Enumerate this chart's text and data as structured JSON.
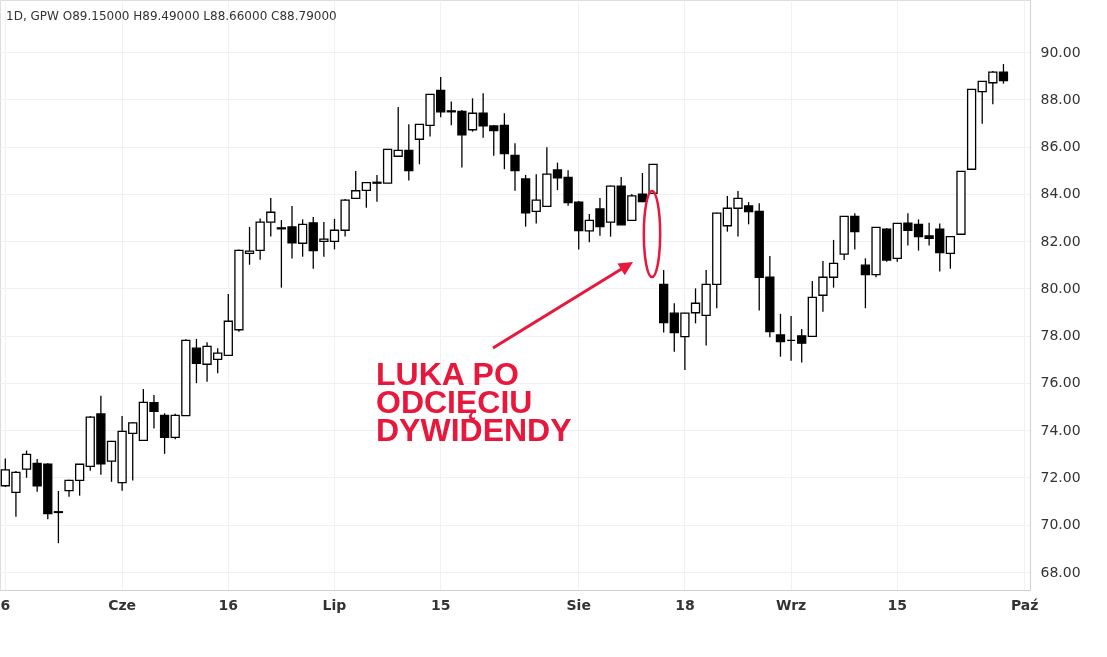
{
  "chart_data": {
    "type": "candlestick",
    "title": "1D, GPW  O89.15000  H89.49000  L88.66000  C88.79000",
    "annotations": [
      "LUKA PO\nODCIĘCIU\nDYWIDENDY"
    ],
    "color": "#000000",
    "categories": [
      "6",
      null,
      null,
      null,
      null,
      null,
      null,
      null,
      null,
      null,
      null,
      "Cze",
      null,
      null,
      null,
      null,
      null,
      null,
      null,
      null,
      null,
      "16",
      null,
      null,
      null,
      null,
      null,
      null,
      null,
      null,
      null,
      "Lip",
      null,
      null,
      null,
      null,
      null,
      null,
      null,
      null,
      null,
      "15",
      null,
      null,
      null,
      null,
      null,
      null,
      null,
      null,
      null,
      null,
      null,
      null,
      "Sie",
      null,
      null,
      null,
      null,
      null,
      null,
      null,
      null,
      null,
      "18",
      null,
      null,
      null,
      null,
      null,
      null,
      null,
      null,
      null,
      "Wrz",
      null,
      null,
      null,
      null,
      null,
      null,
      null,
      null,
      null,
      "15",
      null,
      null,
      null,
      null,
      null,
      null,
      null,
      null,
      null,
      null,
      null,
      "Paź"
    ],
    "ohlc": [
      [
        71.65,
        72.8,
        71.6,
        72.32
      ],
      [
        71.37,
        72.27,
        70.34,
        72.22
      ],
      [
        72.35,
        73.14,
        71.99,
        72.98
      ],
      [
        72.6,
        72.78,
        71.4,
        71.65
      ],
      [
        72.56,
        72.6,
        70.23,
        70.47
      ],
      [
        70.55,
        71.43,
        69.22,
        70.52
      ],
      [
        71.44,
        71.9,
        71.19,
        71.88
      ],
      [
        71.88,
        72.56,
        71.23,
        72.56
      ],
      [
        72.47,
        74.6,
        72.29,
        74.55
      ],
      [
        74.69,
        75.46,
        72.12,
        72.58
      ],
      [
        72.69,
        73.55,
        71.82,
        73.53
      ],
      [
        71.78,
        74.6,
        71.44,
        73.95
      ],
      [
        73.87,
        74.35,
        71.87,
        74.31
      ],
      [
        73.57,
        75.74,
        73.57,
        75.18
      ],
      [
        75.17,
        75.49,
        74.07,
        74.8
      ],
      [
        74.63,
        74.72,
        73.0,
        73.7
      ],
      [
        73.7,
        74.7,
        73.62,
        74.63
      ],
      [
        74.62,
        77.85,
        74.6,
        77.8
      ],
      [
        77.47,
        77.86,
        75.99,
        76.83
      ],
      [
        76.79,
        77.72,
        76.05,
        77.55
      ],
      [
        77.0,
        77.47,
        76.41,
        77.26
      ],
      [
        77.17,
        79.76,
        77.17,
        78.61
      ],
      [
        78.25,
        81.65,
        78.17,
        81.61
      ],
      [
        81.48,
        82.6,
        81.0,
        81.58
      ],
      [
        81.61,
        82.96,
        81.21,
        82.8
      ],
      [
        82.8,
        83.82,
        82.19,
        83.22
      ],
      [
        82.56,
        82.89,
        80.03,
        82.52
      ],
      [
        82.6,
        83.49,
        81.26,
        81.93
      ],
      [
        81.91,
        82.92,
        81.34,
        82.71
      ],
      [
        82.77,
        83.02,
        80.83,
        81.6
      ],
      [
        81.99,
        82.81,
        81.34,
        82.08
      ],
      [
        81.99,
        82.94,
        81.65,
        82.46
      ],
      [
        82.46,
        83.78,
        82.19,
        83.73
      ],
      [
        83.81,
        84.97,
        83.78,
        84.13
      ],
      [
        84.15,
        84.5,
        83.41,
        84.47
      ],
      [
        84.45,
        84.8,
        83.67,
        84.49
      ],
      [
        84.45,
        85.9,
        84.45,
        85.88
      ],
      [
        85.59,
        87.67,
        85.59,
        85.84
      ],
      [
        85.84,
        86.94,
        84.56,
        84.98
      ],
      [
        86.31,
        86.94,
        85.25,
        86.94
      ],
      [
        86.9,
        88.21,
        86.43,
        88.21
      ],
      [
        88.38,
        88.94,
        87.24,
        87.47
      ],
      [
        87.51,
        87.91,
        86.9,
        87.47
      ],
      [
        87.49,
        87.55,
        85.11,
        86.5
      ],
      [
        86.71,
        88.04,
        86.63,
        87.41
      ],
      [
        87.41,
        88.25,
        86.37,
        86.88
      ],
      [
        86.87,
        86.9,
        85.61,
        86.67
      ],
      [
        86.9,
        87.41,
        85.04,
        85.7
      ],
      [
        85.63,
        86.14,
        84.13,
        84.98
      ],
      [
        84.63,
        84.8,
        82.61,
        83.2
      ],
      [
        83.26,
        84.83,
        82.75,
        83.73
      ],
      [
        83.47,
        85.97,
        83.45,
        84.83
      ],
      [
        85.01,
        85.32,
        84.16,
        84.68
      ],
      [
        84.7,
        85.0,
        83.5,
        83.63
      ],
      [
        83.65,
        83.7,
        81.65,
        82.44
      ],
      [
        82.43,
        83.15,
        81.95,
        82.88
      ],
      [
        83.36,
        83.82,
        82.23,
        82.61
      ],
      [
        82.8,
        84.35,
        82.19,
        84.33
      ],
      [
        84.33,
        84.71,
        82.69,
        82.69
      ],
      [
        82.88,
        83.99,
        82.85,
        83.91
      ],
      [
        83.99,
        84.88,
        83.65,
        83.67
      ],
      [
        84.02,
        85.25,
        84.0,
        85.25
      ],
      [
        80.17,
        80.78,
        78.13,
        78.55
      ],
      [
        78.95,
        79.37,
        77.32,
        78.13
      ],
      [
        77.96,
        78.97,
        76.55,
        78.95
      ],
      [
        78.97,
        80.0,
        78.52,
        79.37
      ],
      [
        78.86,
        80.78,
        77.58,
        80.17
      ],
      [
        80.17,
        83.2,
        79.16,
        83.18
      ],
      [
        82.65,
        83.91,
        82.4,
        83.39
      ],
      [
        83.39,
        84.12,
        82.19,
        83.81
      ],
      [
        83.49,
        83.65,
        82.71,
        83.25
      ],
      [
        83.26,
        83.6,
        79.06,
        80.47
      ],
      [
        80.47,
        81.37,
        77.93,
        78.17
      ],
      [
        78.03,
        78.92,
        77.11,
        77.75
      ],
      [
        77.8,
        78.83,
        76.94,
        77.8
      ],
      [
        77.99,
        78.28,
        76.86,
        77.68
      ],
      [
        77.97,
        80.31,
        77.95,
        79.62
      ],
      [
        79.71,
        81.16,
        79.01,
        80.47
      ],
      [
        80.47,
        82.05,
        80.03,
        81.06
      ],
      [
        81.45,
        83.05,
        81.2,
        83.05
      ],
      [
        83.05,
        83.18,
        81.65,
        82.4
      ],
      [
        80.98,
        81.27,
        79.16,
        80.58
      ],
      [
        80.58,
        82.58,
        80.47,
        82.58
      ],
      [
        82.51,
        82.55,
        81.13,
        81.2
      ],
      [
        81.27,
        82.75,
        81.13,
        82.75
      ],
      [
        82.76,
        83.18,
        81.81,
        82.45
      ],
      [
        82.71,
        82.92,
        81.6,
        82.19
      ],
      [
        82.22,
        82.78,
        81.81,
        82.12
      ],
      [
        82.51,
        82.74,
        80.71,
        81.51
      ],
      [
        81.48,
        82.19,
        80.83,
        82.19
      ],
      [
        82.29,
        84.95,
        82.29,
        84.95
      ],
      [
        85.04,
        88.42,
        85.04,
        88.42
      ],
      [
        88.32,
        88.76,
        86.97,
        88.76
      ],
      [
        88.7,
        89.2,
        87.79,
        89.15
      ],
      [
        89.15,
        89.49,
        88.66,
        88.79
      ],
      null,
      null
    ],
    "ylim": [
      67.24,
      92.2
    ],
    "yticks": [
      {
        "value": 68,
        "label": "68.00"
      },
      {
        "value": 70,
        "label": "70.00"
      },
      {
        "value": 72,
        "label": "72.00"
      },
      {
        "value": 74,
        "label": "74.00"
      },
      {
        "value": 76,
        "label": "76.00"
      },
      {
        "value": 78,
        "label": "78.00"
      },
      {
        "value": 80,
        "label": "80.00"
      },
      {
        "value": 82,
        "label": "82.00"
      },
      {
        "value": 84,
        "label": "84.00"
      },
      {
        "value": 86,
        "label": "86.00"
      },
      {
        "value": 88,
        "label": "88.00"
      },
      {
        "value": 90,
        "label": "90.00"
      }
    ],
    "grid": true
  }
}
